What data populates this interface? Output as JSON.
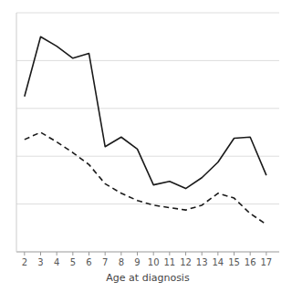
{
  "chart_data": {
    "type": "line",
    "x": [
      2,
      3,
      4,
      5,
      6,
      7,
      8,
      9,
      10,
      11,
      12,
      13,
      14,
      15,
      16,
      17
    ],
    "series": [
      {
        "color": "#1a1a1a",
        "line_style": "solid",
        "values": [
          0.65,
          0.9,
          0.86,
          0.81,
          0.83,
          0.44,
          0.48,
          0.43,
          0.28,
          0.295,
          0.265,
          0.31,
          0.375,
          0.475,
          0.48,
          0.32
        ]
      },
      {
        "color": "#1a1a1a",
        "line_style": "dashed",
        "values": [
          0.47,
          0.5,
          0.46,
          0.415,
          0.365,
          0.285,
          0.245,
          0.215,
          0.195,
          0.185,
          0.175,
          0.195,
          0.245,
          0.225,
          0.16,
          0.115
        ]
      }
    ],
    "xlabel": "Age at diagnosis",
    "xlim": [
      1.5,
      17.8
    ],
    "ylim": [
      0.0,
      1.0
    ],
    "xticks": [
      2,
      3,
      4,
      5,
      6,
      7,
      8,
      9,
      10,
      11,
      12,
      13,
      14,
      15,
      16,
      17
    ],
    "yticks": [
      0.2,
      0.4,
      0.6,
      0.8,
      1.0
    ],
    "grid": true,
    "tick_labels": "x"
  }
}
